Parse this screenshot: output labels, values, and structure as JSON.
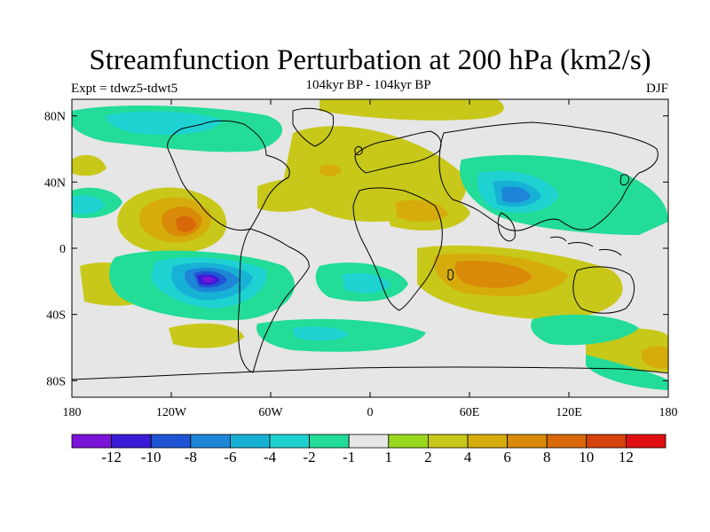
{
  "title": "Streamfunction Perturbation at 200 hPa (km2/s)",
  "left_label": "Expt = tdwz5-tdwt5",
  "center_label": "104kyr BP - 104kyr BP",
  "right_label": "DJF",
  "axes": {
    "lat_ticks": [
      {
        "lat": 80,
        "label": "80N"
      },
      {
        "lat": 40,
        "label": "40N"
      },
      {
        "lat": 0,
        "label": "0"
      },
      {
        "lat": -40,
        "label": "40S"
      },
      {
        "lat": -80,
        "label": "80S"
      }
    ],
    "lon_ticks": [
      {
        "lon": -180,
        "label": "180"
      },
      {
        "lon": -120,
        "label": "120W"
      },
      {
        "lon": -60,
        "label": "60W"
      },
      {
        "lon": 0,
        "label": "0"
      },
      {
        "lon": 60,
        "label": "60E"
      },
      {
        "lon": 120,
        "label": "120E"
      },
      {
        "lon": 180,
        "label": "180"
      }
    ],
    "lon_range": [
      -180,
      180
    ],
    "lat_range": [
      -90,
      90
    ]
  },
  "colorbar": {
    "colors": [
      "#7a14d9",
      "#3a1cd6",
      "#1f55d4",
      "#1d86d6",
      "#18b1d6",
      "#1ed2d2",
      "#22dc98",
      "#e6e6e6",
      "#9ad81e",
      "#c8c81a",
      "#d6ac0c",
      "#d88a08",
      "#d8680a",
      "#d6420c",
      "#e01010"
    ],
    "labels": [
      "-12",
      "-10",
      "-8",
      "-6",
      "-4",
      "-2",
      "-1",
      "1",
      "2",
      "4",
      "6",
      "8",
      "10",
      "12"
    ]
  },
  "colors": {
    "background_zero": "#e6e6e6",
    "coastline": "#000000"
  }
}
